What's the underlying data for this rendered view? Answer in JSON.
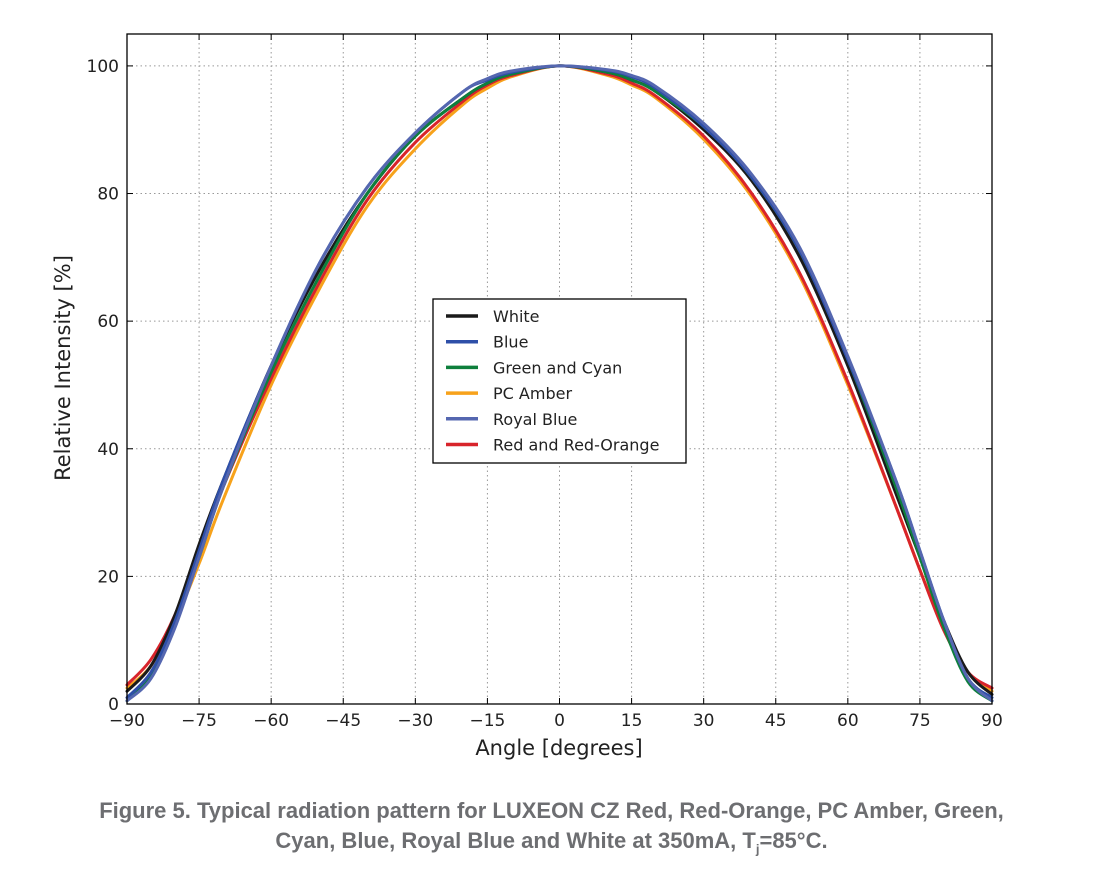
{
  "caption": {
    "line1": "Figure 5. Typical radiation pattern for LUXEON CZ Red, Red-Orange, PC Amber, Green,",
    "line2_prefix": "Cyan, Blue, Royal Blue and White at 350mA, T",
    "line2_sub": "j",
    "line2_suffix": "=85°C."
  },
  "chart_data": {
    "type": "line",
    "title": "",
    "xlabel": "Angle [degrees]",
    "ylabel": "Relative Intensity [%]",
    "xlim": [
      -90,
      90
    ],
    "ylim": [
      0,
      105
    ],
    "xticks": [
      -90,
      -75,
      -60,
      -45,
      -30,
      -15,
      0,
      15,
      30,
      45,
      60,
      75,
      90
    ],
    "xtick_labels": [
      "−90",
      "−75",
      "−60",
      "−45",
      "−30",
      "−15",
      "0",
      "15",
      "30",
      "45",
      "60",
      "75",
      "90"
    ],
    "yticks": [
      0,
      20,
      40,
      60,
      80,
      100
    ],
    "ytick_labels": [
      "0",
      "20",
      "40",
      "60",
      "80",
      "100"
    ],
    "grid": true,
    "legend_position": "center",
    "x": [
      -90,
      -85,
      -80,
      -75,
      -70,
      -60,
      -50,
      -40,
      -30,
      -20,
      -15,
      -10,
      0,
      10,
      15,
      20,
      30,
      40,
      50,
      60,
      70,
      75,
      80,
      85,
      90
    ],
    "series": [
      {
        "name": "White",
        "color": "#1a1a1a",
        "values": [
          2,
          6,
          14,
          25,
          35,
          53,
          68,
          80,
          89,
          95,
          97.3,
          98.8,
          100,
          99,
          97.8,
          96,
          90,
          82,
          70,
          53,
          33,
          23,
          13,
          5,
          1.5
        ]
      },
      {
        "name": "Blue",
        "color": "#2e4fa8",
        "values": [
          1,
          5,
          13,
          24,
          35,
          53,
          69,
          81,
          89.5,
          96,
          97.8,
          99,
          100,
          99.3,
          98.3,
          96.5,
          90.5,
          82.5,
          71,
          54,
          35,
          24,
          13,
          4,
          1
        ]
      },
      {
        "name": "Green and Cyan",
        "color": "#0e7f3c",
        "values": [
          0.5,
          4.5,
          12.5,
          23,
          34,
          52,
          67,
          80,
          89,
          95,
          97.3,
          98.7,
          100,
          99,
          97.8,
          96,
          90.5,
          82.5,
          71,
          54,
          34,
          23,
          12,
          3.5,
          0.5
        ]
      },
      {
        "name": "PC Amber",
        "color": "#f7a21b",
        "values": [
          2.5,
          6,
          13,
          22,
          32,
          50,
          65,
          78,
          87,
          94,
          96.5,
          98.3,
          100,
          98.5,
          97,
          95,
          88.5,
          79.5,
          67,
          50,
          31,
          21,
          12,
          5,
          2
        ]
      },
      {
        "name": "Royal Blue",
        "color": "#5567b0",
        "values": [
          0.5,
          4,
          12,
          23,
          34,
          53,
          69,
          81,
          89.5,
          96,
          98,
          99.2,
          100,
          99.4,
          98.5,
          96.8,
          91,
          83,
          71.5,
          54.5,
          35,
          24,
          13,
          4,
          0.5
        ]
      },
      {
        "name": "Red and Red-Orange",
        "color": "#d8242b",
        "values": [
          3,
          7,
          14,
          24,
          34,
          51,
          66,
          79,
          88,
          94.5,
          97,
          98.5,
          100,
          98.7,
          97.3,
          95.3,
          89,
          80,
          67.5,
          50.5,
          31,
          21,
          11.5,
          5,
          2.5
        ]
      }
    ]
  }
}
